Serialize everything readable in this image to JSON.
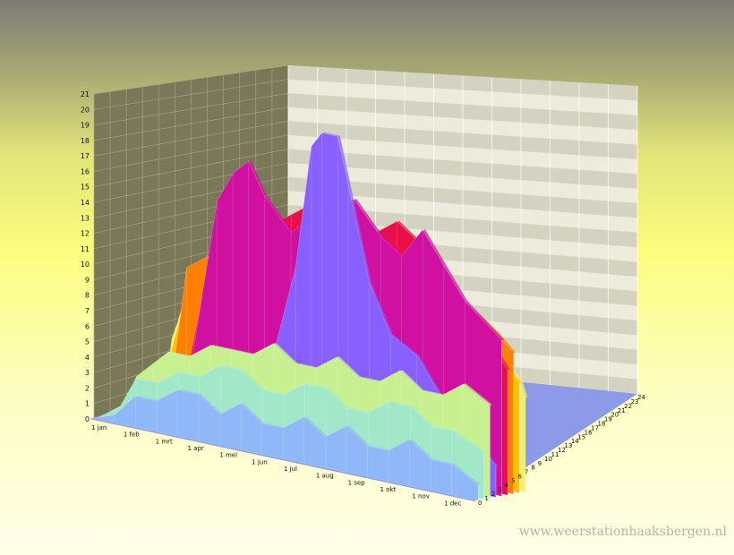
{
  "watermark": "www.weerstationhaaksbergen.nl",
  "chart_data": {
    "type": "area",
    "view": "3d-stacked-area",
    "title": "",
    "xlabel": "",
    "ylabel": "",
    "ylim": [
      0,
      21
    ],
    "yticks": [
      0,
      1,
      2,
      3,
      4,
      5,
      6,
      7,
      8,
      9,
      10,
      11,
      12,
      13,
      14,
      15,
      16,
      17,
      18,
      19,
      20,
      21
    ],
    "x_ticks": [
      "1 jan",
      "1 feb",
      "1 mrt",
      "1 apr",
      "1 mei",
      "1 jun",
      "1 jul",
      "1 aug",
      "1 sep",
      "1 okt",
      "1 nov",
      "1 dec"
    ],
    "x_range_days": [
      0,
      365
    ],
    "z_ticks": [
      "0",
      "1",
      "2",
      "3",
      "4",
      "5",
      "6",
      "7",
      "8",
      "9",
      "10",
      "11",
      "12",
      "13",
      "14",
      "15",
      "16",
      "17",
      "18",
      "19",
      "20",
      "21",
      "22",
      "23",
      "24"
    ],
    "grid": true,
    "legend": "none",
    "series": [
      {
        "color": "#f0f070",
        "points": [
          [
            0,
            0
          ],
          [
            20,
            0.5
          ],
          [
            30,
            5
          ],
          [
            35,
            6
          ],
          [
            41,
            7.5
          ],
          [
            55,
            8
          ],
          [
            61,
            9
          ],
          [
            70,
            10
          ],
          [
            80,
            10
          ],
          [
            92,
            12
          ],
          [
            110,
            12
          ],
          [
            120,
            13
          ],
          [
            125,
            14
          ],
          [
            138,
            9
          ],
          [
            152,
            10
          ],
          [
            160,
            11
          ],
          [
            170,
            12
          ],
          [
            182,
            12
          ],
          [
            195,
            11
          ],
          [
            205,
            12
          ],
          [
            213,
            11
          ],
          [
            225,
            9
          ],
          [
            240,
            10
          ],
          [
            255,
            12
          ],
          [
            270,
            11
          ],
          [
            285,
            10
          ],
          [
            300,
            9
          ],
          [
            315,
            10
          ],
          [
            330,
            9
          ],
          [
            345,
            8
          ],
          [
            360,
            7
          ],
          [
            365,
            6
          ]
        ]
      },
      {
        "color": "#ffc000",
        "points": [
          [
            0,
            0
          ],
          [
            30,
            3
          ],
          [
            45,
            7
          ],
          [
            60,
            9
          ],
          [
            75,
            10
          ],
          [
            95,
            11
          ],
          [
            110,
            11
          ],
          [
            125,
            12
          ],
          [
            140,
            11
          ],
          [
            155,
            10
          ],
          [
            170,
            11
          ],
          [
            185,
            10
          ],
          [
            200,
            12
          ],
          [
            213,
            14
          ],
          [
            230,
            12
          ],
          [
            245,
            10
          ],
          [
            260,
            12
          ],
          [
            275,
            11
          ],
          [
            290,
            11
          ],
          [
            305,
            10
          ],
          [
            320,
            11
          ],
          [
            335,
            9
          ],
          [
            350,
            8
          ],
          [
            365,
            7
          ]
        ]
      },
      {
        "color": "#ff8000",
        "points": [
          [
            0,
            0
          ],
          [
            40,
            2
          ],
          [
            55,
            10
          ],
          [
            75,
            11
          ],
          [
            95,
            11
          ],
          [
            108,
            12
          ],
          [
            125,
            13
          ],
          [
            140,
            12
          ],
          [
            155,
            11
          ],
          [
            170,
            13
          ],
          [
            190,
            12
          ],
          [
            210,
            13
          ],
          [
            220,
            12
          ],
          [
            240,
            11
          ],
          [
            260,
            11
          ],
          [
            280,
            12
          ],
          [
            300,
            11
          ],
          [
            315,
            10
          ],
          [
            330,
            11
          ],
          [
            350,
            10
          ],
          [
            365,
            9
          ]
        ]
      },
      {
        "color": "#e8104a",
        "points": [
          [
            0,
            0
          ],
          [
            60,
            3
          ],
          [
            85,
            12
          ],
          [
            100,
            14
          ],
          [
            115,
            15
          ],
          [
            140,
            14
          ],
          [
            160,
            15
          ],
          [
            180,
            16
          ],
          [
            200,
            15
          ],
          [
            220,
            14
          ],
          [
            240,
            15
          ],
          [
            260,
            16
          ],
          [
            280,
            15
          ],
          [
            300,
            13
          ],
          [
            320,
            11
          ],
          [
            345,
            10
          ],
          [
            365,
            8
          ]
        ]
      },
      {
        "color": "#d010a0",
        "points": [
          [
            0,
            0
          ],
          [
            70,
            4
          ],
          [
            95,
            15
          ],
          [
            110,
            17
          ],
          [
            125,
            18
          ],
          [
            140,
            16
          ],
          [
            165,
            14
          ],
          [
            180,
            15
          ],
          [
            205,
            16
          ],
          [
            225,
            17
          ],
          [
            250,
            15
          ],
          [
            270,
            14
          ],
          [
            290,
            16
          ],
          [
            310,
            14
          ],
          [
            330,
            12
          ],
          [
            365,
            10
          ]
        ]
      },
      {
        "color": "#8860ff",
        "points": [
          [
            0,
            0
          ],
          [
            100,
            2
          ],
          [
            150,
            5
          ],
          [
            175,
            12
          ],
          [
            190,
            20
          ],
          [
            200,
            21
          ],
          [
            215,
            21
          ],
          [
            225,
            18
          ],
          [
            245,
            12
          ],
          [
            265,
            9
          ],
          [
            290,
            8
          ],
          [
            320,
            5
          ],
          [
            365,
            2
          ]
        ]
      },
      {
        "color": "#c8f090",
        "points": [
          [
            0,
            0
          ],
          [
            15,
            0.5
          ],
          [
            30,
            3
          ],
          [
            45,
            4
          ],
          [
            60,
            5
          ],
          [
            80,
            5
          ],
          [
            100,
            6
          ],
          [
            120,
            6
          ],
          [
            140,
            6
          ],
          [
            160,
            7
          ],
          [
            180,
            6
          ],
          [
            200,
            6
          ],
          [
            220,
            7
          ],
          [
            240,
            6
          ],
          [
            260,
            6
          ],
          [
            280,
            7
          ],
          [
            300,
            6
          ],
          [
            320,
            6
          ],
          [
            340,
            7
          ],
          [
            365,
            6
          ]
        ]
      },
      {
        "color": "#a0e8c8",
        "points": [
          [
            0,
            0
          ],
          [
            20,
            1
          ],
          [
            35,
            3
          ],
          [
            55,
            3
          ],
          [
            75,
            4
          ],
          [
            95,
            4
          ],
          [
            115,
            5
          ],
          [
            135,
            5
          ],
          [
            155,
            4
          ],
          [
            175,
            4
          ],
          [
            195,
            5
          ],
          [
            215,
            5
          ],
          [
            235,
            4
          ],
          [
            255,
            4
          ],
          [
            275,
            5
          ],
          [
            295,
            5
          ],
          [
            315,
            4
          ],
          [
            335,
            4
          ],
          [
            365,
            3
          ]
        ]
      },
      {
        "color": "#90b8f8",
        "points": [
          [
            0,
            0
          ],
          [
            20,
            0.5
          ],
          [
            40,
            2
          ],
          [
            60,
            2
          ],
          [
            80,
            3
          ],
          [
            100,
            3
          ],
          [
            120,
            2
          ],
          [
            140,
            3
          ],
          [
            160,
            2
          ],
          [
            180,
            2
          ],
          [
            200,
            3
          ],
          [
            220,
            2
          ],
          [
            240,
            3
          ],
          [
            260,
            2
          ],
          [
            280,
            2
          ],
          [
            300,
            3
          ],
          [
            320,
            2
          ],
          [
            340,
            2
          ],
          [
            365,
            1
          ]
        ]
      }
    ]
  }
}
